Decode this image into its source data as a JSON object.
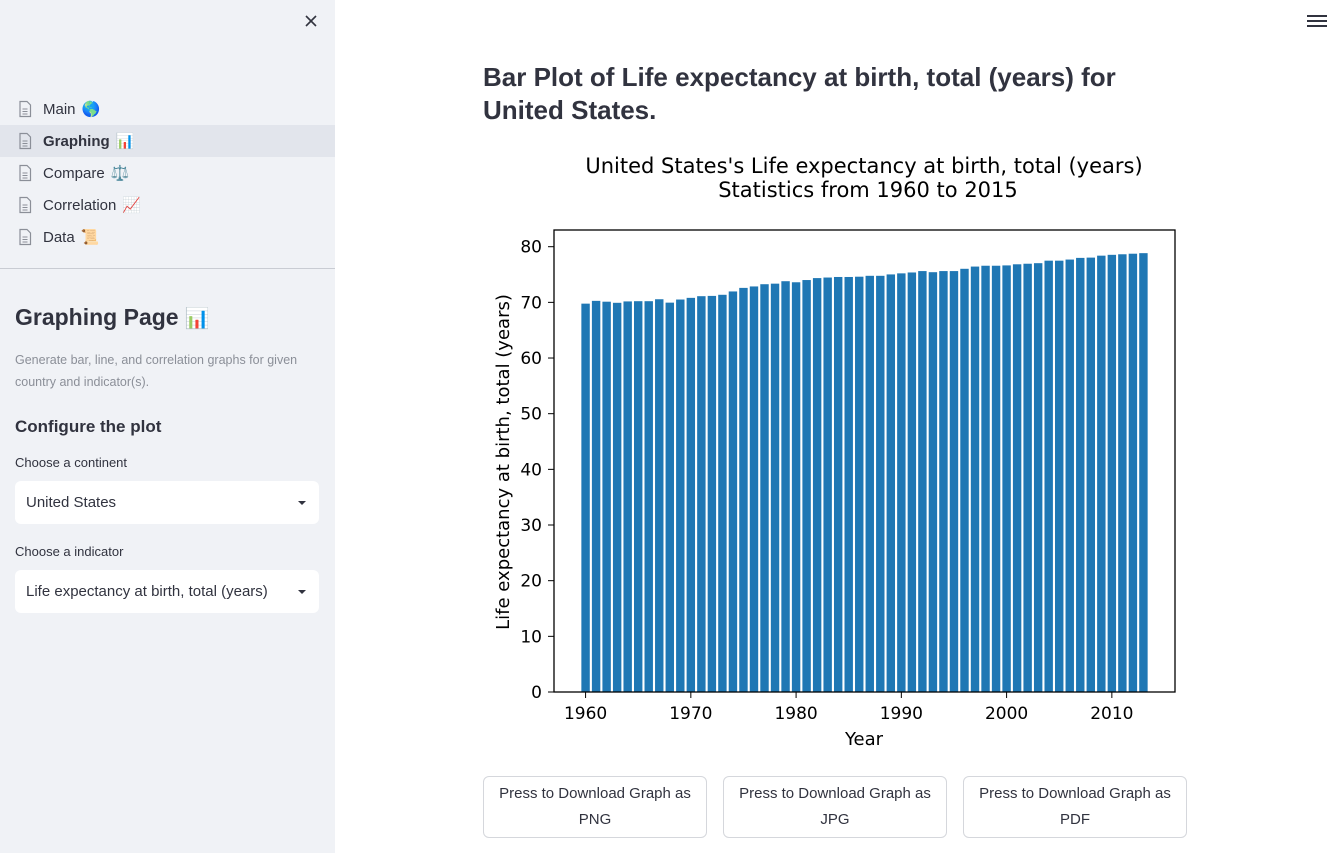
{
  "sidebar": {
    "nav": [
      {
        "label": "Main",
        "emoji": "🌎",
        "active": false
      },
      {
        "label": "Graphing",
        "emoji": "📊",
        "active": true
      },
      {
        "label": "Compare",
        "emoji": "⚖️",
        "active": false
      },
      {
        "label": "Correlation",
        "emoji": "📈",
        "active": false
      },
      {
        "label": "Data",
        "emoji": "📜",
        "active": false
      }
    ],
    "title": "Graphing Page",
    "title_emoji": "📊",
    "caption": "Generate bar, line, and correlation graphs for given country and indicator(s).",
    "subheader": "Configure the plot",
    "continent_label": "Choose a continent",
    "continent_value": "United States",
    "indicator_label": "Choose a indicator",
    "indicator_value": "Life expectancy at birth, total (years)"
  },
  "main": {
    "title": "Bar Plot of Life expectancy at birth, total (years) for United States.",
    "buttons": {
      "png": "Press to Download Graph as PNG",
      "jpg": "Press to Download Graph as JPG",
      "pdf": "Press to Download Graph as PDF"
    }
  },
  "colors": {
    "bar": "#1f77b4",
    "sidebar_bg": "#f0f2f6",
    "active_nav_bg": "#e2e5ec"
  },
  "chart_data": {
    "type": "bar",
    "title_line1": "United States's Life expectancy at birth, total (years)",
    "title_line2": "Statistics from 1960 to 2015",
    "xlabel": "Year",
    "ylabel": "Life expectancy at birth, total (years)",
    "xlim": [
      1957,
      2016
    ],
    "ylim": [
      0,
      83
    ],
    "xticks": [
      1960,
      1970,
      1980,
      1990,
      2000,
      2010
    ],
    "yticks": [
      0,
      10,
      20,
      30,
      40,
      50,
      60,
      70,
      80
    ],
    "grid": false,
    "x": [
      1960,
      1961,
      1962,
      1963,
      1964,
      1965,
      1966,
      1967,
      1968,
      1969,
      1970,
      1971,
      1972,
      1973,
      1974,
      1975,
      1976,
      1977,
      1978,
      1979,
      1980,
      1981,
      1982,
      1983,
      1984,
      1985,
      1986,
      1987,
      1988,
      1989,
      1990,
      1991,
      1992,
      1993,
      1994,
      1995,
      1996,
      1997,
      1998,
      1999,
      2000,
      2001,
      2002,
      2003,
      2004,
      2005,
      2006,
      2007,
      2008,
      2009,
      2010,
      2011,
      2012,
      2013
    ],
    "values": [
      69.77,
      70.27,
      70.12,
      69.92,
      70.17,
      70.21,
      70.21,
      70.56,
      69.95,
      70.51,
      70.81,
      71.11,
      71.16,
      71.36,
      71.96,
      72.6,
      72.86,
      73.26,
      73.36,
      73.8,
      73.61,
      74.01,
      74.36,
      74.46,
      74.56,
      74.56,
      74.61,
      74.77,
      74.77,
      75.02,
      75.21,
      75.37,
      75.62,
      75.42,
      75.62,
      75.62,
      76.03,
      76.43,
      76.58,
      76.58,
      76.64,
      76.84,
      76.94,
      77.04,
      77.49,
      77.49,
      77.69,
      77.99,
      78.04,
      78.39,
      78.54,
      78.64,
      78.74,
      78.84
    ]
  }
}
